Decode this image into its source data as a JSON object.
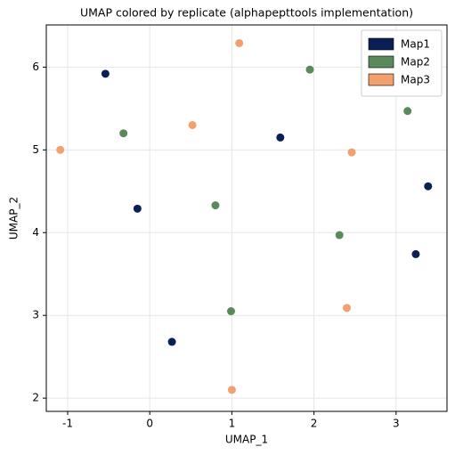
{
  "chart_data": {
    "type": "scatter",
    "title": "UMAP colored by replicate (alphapepttools implementation)",
    "xlabel": "UMAP_1",
    "ylabel": "UMAP_2",
    "xlim": [
      -1.26,
      3.62
    ],
    "ylim": [
      1.84,
      6.51
    ],
    "xticks": [
      -1,
      0,
      1,
      2,
      3
    ],
    "yticks": [
      2,
      3,
      4,
      5,
      6
    ],
    "grid": true,
    "legend": "upper right",
    "series": [
      {
        "name": "Map1",
        "color": "#0b1f57",
        "x": [
          -0.54,
          1.59,
          -0.15,
          3.39,
          3.24,
          0.27
        ],
        "y": [
          5.92,
          5.15,
          4.29,
          4.56,
          3.74,
          2.68
        ]
      },
      {
        "name": "Map2",
        "color": "#5a8a5c",
        "x": [
          1.95,
          -0.32,
          3.14,
          0.8,
          2.31,
          0.99
        ],
        "y": [
          5.97,
          5.2,
          5.47,
          4.33,
          3.97,
          3.05
        ]
      },
      {
        "name": "Map3",
        "color": "#f2a06e",
        "x": [
          1.09,
          0.52,
          -1.09,
          2.46,
          2.4,
          1.0
        ],
        "y": [
          6.29,
          5.3,
          5.0,
          4.97,
          3.09,
          2.1
        ]
      }
    ]
  }
}
